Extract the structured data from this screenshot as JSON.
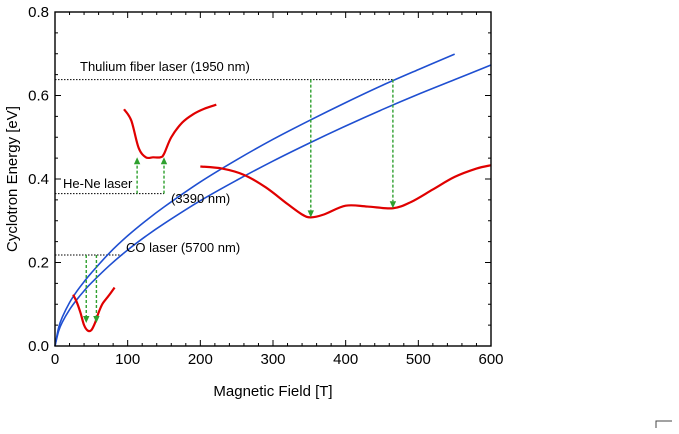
{
  "chart_data": {
    "type": "line",
    "title": "",
    "xlabel": "Magnetic Field [T]",
    "ylabel": "Cyclotron Energy [eV]",
    "xlim": [
      0,
      600
    ],
    "ylim": [
      0,
      0.8
    ],
    "xticks": [
      "0",
      "100",
      "200",
      "300",
      "400",
      "500",
      "600"
    ],
    "yticks": [
      "0.0",
      "0.2",
      "0.4",
      "0.6",
      "0.8"
    ],
    "grid": false,
    "series": [
      {
        "color": "#1f4fd1",
        "x": [
          0,
          5,
          10,
          20,
          30,
          40,
          50,
          75,
          100,
          125,
          150,
          200,
          250,
          300,
          350,
          400,
          450,
          500,
          550
        ],
        "y": [
          0,
          0.044,
          0.069,
          0.104,
          0.131,
          0.154,
          0.175,
          0.223,
          0.264,
          0.3,
          0.333,
          0.393,
          0.446,
          0.495,
          0.54,
          0.583,
          0.624,
          0.662,
          0.699
        ]
      },
      {
        "color": "#1f4fd1",
        "x": [
          0,
          5,
          10,
          20,
          30,
          40,
          50,
          75,
          100,
          125,
          150,
          200,
          250,
          300,
          350,
          400,
          450,
          500,
          550,
          600
        ],
        "y": [
          0,
          0.036,
          0.057,
          0.087,
          0.111,
          0.132,
          0.151,
          0.193,
          0.23,
          0.263,
          0.293,
          0.348,
          0.397,
          0.443,
          0.486,
          0.527,
          0.566,
          0.603,
          0.638,
          0.673
        ]
      }
    ],
    "reference_lines": [
      {
        "label": "Thulium fiber laser (1950 nm)",
        "y": 0.638,
        "x_end": 465
      },
      {
        "label": "He-Ne laser",
        "y": 0.365,
        "x_end": 150
      },
      {
        "label": "(3390 nm)",
        "y": 0.365,
        "x_end": 150
      },
      {
        "label": "CO laser (5700 nm)",
        "y": 0.218,
        "x_end": 95
      }
    ],
    "transitions": [
      {
        "x": 43,
        "y_top": 0.218,
        "y_bottom": 0.055
      },
      {
        "x": 57,
        "y_top": 0.218,
        "y_bottom": 0.055
      },
      {
        "x": 113,
        "y_top": 0.365,
        "y_bottom": 0.452
      },
      {
        "x": 150,
        "y_top": 0.365,
        "y_bottom": 0.452
      },
      {
        "x": 352,
        "y_top": 0.638,
        "y_bottom": 0.308
      },
      {
        "x": 465,
        "y_top": 0.638,
        "y_bottom": 0.33
      }
    ],
    "potential_curves": [
      {
        "color": "#e00000",
        "x": [
          25,
          30,
          35,
          40,
          45,
          50,
          55,
          60,
          65,
          70,
          75,
          82
        ],
        "y": [
          0.123,
          0.105,
          0.08,
          0.05,
          0.037,
          0.038,
          0.055,
          0.08,
          0.1,
          0.112,
          0.123,
          0.14
        ]
      },
      {
        "color": "#e00000",
        "x": [
          95,
          105,
          115,
          125,
          135,
          145,
          150,
          160,
          175,
          190,
          205,
          222
        ],
        "y": [
          0.567,
          0.54,
          0.475,
          0.452,
          0.452,
          0.452,
          0.46,
          0.5,
          0.535,
          0.555,
          0.568,
          0.578
        ]
      },
      {
        "color": "#e00000",
        "x": [
          200,
          230,
          260,
          290,
          320,
          340,
          352,
          370,
          400,
          430,
          465,
          490,
          520,
          550,
          580,
          600
        ],
        "y": [
          0.43,
          0.425,
          0.41,
          0.38,
          0.34,
          0.315,
          0.308,
          0.315,
          0.336,
          0.334,
          0.33,
          0.345,
          0.375,
          0.405,
          0.425,
          0.433
        ]
      }
    ],
    "arrow_color": "#2ea02e"
  }
}
